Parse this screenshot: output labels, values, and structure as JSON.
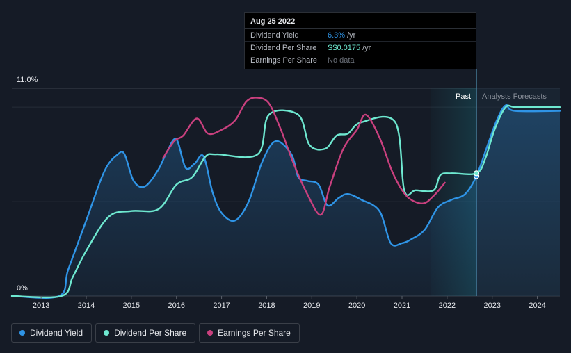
{
  "colors": {
    "background": "#151b26",
    "dividend_yield": "#2f94e6",
    "dividend_per_share": "#6ee8d0",
    "earnings_per_share": "#c9407e",
    "forecast_band": "#1e2c3a"
  },
  "tooltip": {
    "date": "Aug 25 2022",
    "rows": [
      {
        "name": "Dividend Yield",
        "value": "6.3%",
        "unit": "/yr",
        "color": "#2f94e6"
      },
      {
        "name": "Dividend Per Share",
        "value": "S$0.0175",
        "unit": "/yr",
        "color": "#6ee8d0"
      },
      {
        "name": "Earnings Per Share",
        "value": "No data",
        "unit": ""
      }
    ]
  },
  "legend": [
    {
      "label": "Dividend Yield",
      "color": "#2f94e6"
    },
    {
      "label": "Dividend Per Share",
      "color": "#6ee8d0"
    },
    {
      "label": "Earnings Per Share",
      "color": "#c9407e"
    }
  ],
  "chart_data": {
    "type": "line",
    "title": "",
    "xlabel": "",
    "ylabel": "",
    "ylim": [
      0,
      11
    ],
    "xlim": [
      2012.35,
      2024.5
    ],
    "y_tick_labels": [
      "11.0%",
      "0%"
    ],
    "x_ticks": [
      2013,
      2014,
      2015,
      2016,
      2017,
      2018,
      2019,
      2020,
      2021,
      2022,
      2023,
      2024
    ],
    "period_labels": {
      "past": "Past",
      "forecast": "Analysts Forecasts"
    },
    "past_shade_start": 2021.63,
    "forecast_start": 2022.65,
    "highlight_x": 2022.65,
    "series": [
      {
        "name": "Dividend Yield",
        "unit": "%",
        "points": [
          [
            2012.35,
            0
          ],
          [
            2013.4,
            0
          ],
          [
            2013.6,
            1.4
          ],
          [
            2014,
            4.0
          ],
          [
            2014.4,
            6.6
          ],
          [
            2014.7,
            7.5
          ],
          [
            2014.85,
            7.5
          ],
          [
            2015.05,
            6.1
          ],
          [
            2015.3,
            5.8
          ],
          [
            2015.6,
            6.7
          ],
          [
            2015.8,
            7.7
          ],
          [
            2016,
            8.3
          ],
          [
            2016.2,
            6.8
          ],
          [
            2016.4,
            7.0
          ],
          [
            2016.6,
            7.4
          ],
          [
            2016.8,
            5.5
          ],
          [
            2017,
            4.4
          ],
          [
            2017.3,
            4.0
          ],
          [
            2017.6,
            5.0
          ],
          [
            2017.9,
            7.1
          ],
          [
            2018.2,
            8.2
          ],
          [
            2018.55,
            7.5
          ],
          [
            2018.7,
            6.3
          ],
          [
            2018.9,
            6.1
          ],
          [
            2019.15,
            5.9
          ],
          [
            2019.35,
            4.8
          ],
          [
            2019.6,
            5.2
          ],
          [
            2019.8,
            5.4
          ],
          [
            2020.1,
            5.1
          ],
          [
            2020.5,
            4.5
          ],
          [
            2020.75,
            2.8
          ],
          [
            2021,
            2.8
          ],
          [
            2021.2,
            3.0
          ],
          [
            2021.5,
            3.5
          ],
          [
            2021.8,
            4.7
          ],
          [
            2022.1,
            5.1
          ],
          [
            2022.4,
            5.4
          ],
          [
            2022.65,
            6.35
          ],
          [
            2022.9,
            8.0
          ],
          [
            2023.1,
            9.3
          ],
          [
            2023.3,
            10.1
          ],
          [
            2023.5,
            9.8
          ],
          [
            2024.5,
            9.8
          ]
        ]
      },
      {
        "name": "Dividend Per Share",
        "unit": "S$",
        "points": [
          [
            2012.35,
            0
          ],
          [
            2013.45,
            0
          ],
          [
            2013.7,
            1.0
          ],
          [
            2014,
            2.4
          ],
          [
            2014.5,
            4.2
          ],
          [
            2015,
            4.5
          ],
          [
            2015.6,
            4.6
          ],
          [
            2016,
            5.9
          ],
          [
            2016.35,
            6.3
          ],
          [
            2016.65,
            7.4
          ],
          [
            2016.9,
            7.5
          ],
          [
            2017.8,
            7.5
          ],
          [
            2018.05,
            9.6
          ],
          [
            2018.7,
            9.6
          ],
          [
            2018.95,
            8.0
          ],
          [
            2019.3,
            7.8
          ],
          [
            2019.55,
            8.5
          ],
          [
            2019.8,
            8.6
          ],
          [
            2020.1,
            9.2
          ],
          [
            2020.85,
            9.2
          ],
          [
            2021.05,
            5.6
          ],
          [
            2021.3,
            5.6
          ],
          [
            2021.7,
            5.6
          ],
          [
            2021.85,
            6.4
          ],
          [
            2022.1,
            6.5
          ],
          [
            2022.65,
            6.5
          ],
          [
            2022.85,
            7.3
          ],
          [
            2023.05,
            8.8
          ],
          [
            2023.3,
            10.0
          ],
          [
            2023.55,
            10.0
          ],
          [
            2024.5,
            10.0
          ]
        ]
      },
      {
        "name": "Earnings Per Share",
        "unit": "S$",
        "points": [
          [
            2015.7,
            7.3
          ],
          [
            2015.95,
            8.2
          ],
          [
            2016.15,
            8.5
          ],
          [
            2016.45,
            9.4
          ],
          [
            2016.7,
            8.6
          ],
          [
            2017,
            8.8
          ],
          [
            2017.3,
            9.3
          ],
          [
            2017.55,
            10.3
          ],
          [
            2017.8,
            10.5
          ],
          [
            2018.05,
            10.2
          ],
          [
            2018.3,
            8.9
          ],
          [
            2018.6,
            7.0
          ],
          [
            2018.9,
            5.4
          ],
          [
            2019.2,
            4.3
          ],
          [
            2019.4,
            5.8
          ],
          [
            2019.7,
            7.8
          ],
          [
            2020,
            8.8
          ],
          [
            2020.2,
            9.6
          ],
          [
            2020.5,
            8.4
          ],
          [
            2020.8,
            6.5
          ],
          [
            2021.1,
            5.3
          ],
          [
            2021.45,
            4.9
          ],
          [
            2021.7,
            5.3
          ],
          [
            2021.95,
            6.0
          ]
        ]
      }
    ]
  }
}
